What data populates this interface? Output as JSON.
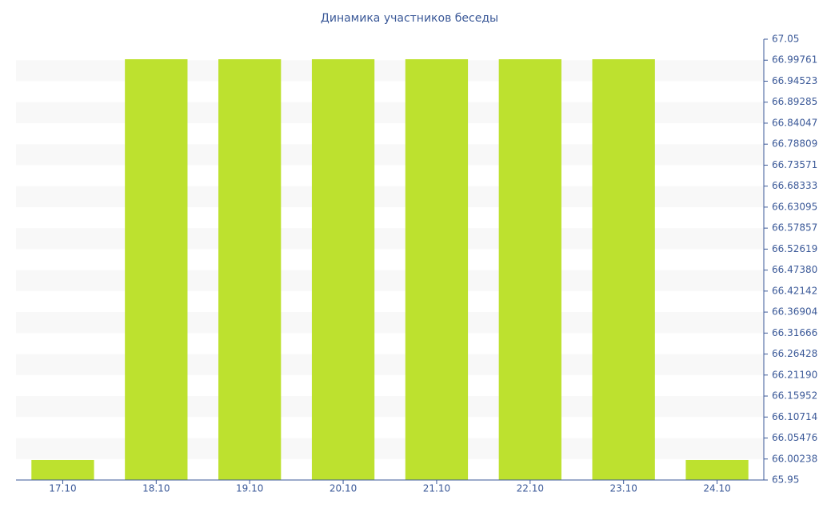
{
  "chart_data": {
    "type": "bar",
    "title": "Динамика участников беседы",
    "categories": [
      "17.10",
      "18.10",
      "19.10",
      "20.10",
      "21.10",
      "22.10",
      "23.10",
      "24.10"
    ],
    "values": [
      66,
      67,
      67,
      67,
      67,
      67,
      67,
      66
    ],
    "color": "#bde12f",
    "ylim": [
      65.95,
      67.05
    ],
    "yticks": [
      65.95,
      66.00238,
      66.05476,
      66.10714,
      66.15952,
      {
        "value": 66.2119,
        "label": "66.21190"
      },
      66.26428,
      66.31666,
      66.36904,
      66.42142,
      {
        "value": 66.4738,
        "label": "66.47380"
      },
      66.52619,
      66.57857,
      66.63095,
      66.68333,
      66.73571,
      66.78809,
      66.84047,
      66.89285,
      66.94523,
      66.99761,
      67.05
    ],
    "grid": true
  }
}
